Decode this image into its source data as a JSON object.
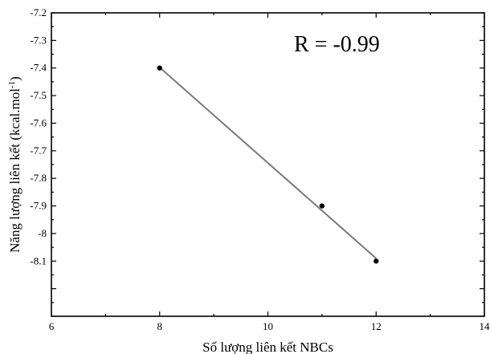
{
  "chart_data": {
    "type": "scatter",
    "xlabel": "Số lượng liên kết NBCs",
    "ylabel": "Năng lượng liên kết (kcal.mol",
    "ylabel_sup": "-1",
    "ylabel_close": ")",
    "annotation": "R = -0.99",
    "xlim": [
      6,
      14
    ],
    "ylim": [
      -8.3,
      -7.2
    ],
    "x_ticks": [
      6,
      8,
      10,
      12,
      14
    ],
    "x_tick_labels": [
      "6",
      "8",
      "10",
      "12",
      "14"
    ],
    "y_ticks": [
      -7.2,
      -7.3,
      -7.4,
      -7.5,
      -7.6,
      -7.7,
      -7.8,
      -7.9,
      -8,
      -8.1
    ],
    "y_tick_labels": [
      "-7.2",
      "-7.3",
      "-7.4",
      "-7.5",
      "-7.6",
      "-7.7",
      "-7.8",
      "-7.9",
      "-8",
      "-8.1"
    ],
    "series": [
      {
        "points": [
          {
            "x": 8,
            "y": -7.4
          },
          {
            "x": 11,
            "y": -7.9
          },
          {
            "x": 12,
            "y": -8.1
          }
        ],
        "color": "#000000"
      }
    ],
    "fit_line": {
      "x": [
        8,
        12
      ],
      "y": [
        -7.398,
        -8.09
      ],
      "color": "#7a7a7a"
    },
    "grid": false
  }
}
